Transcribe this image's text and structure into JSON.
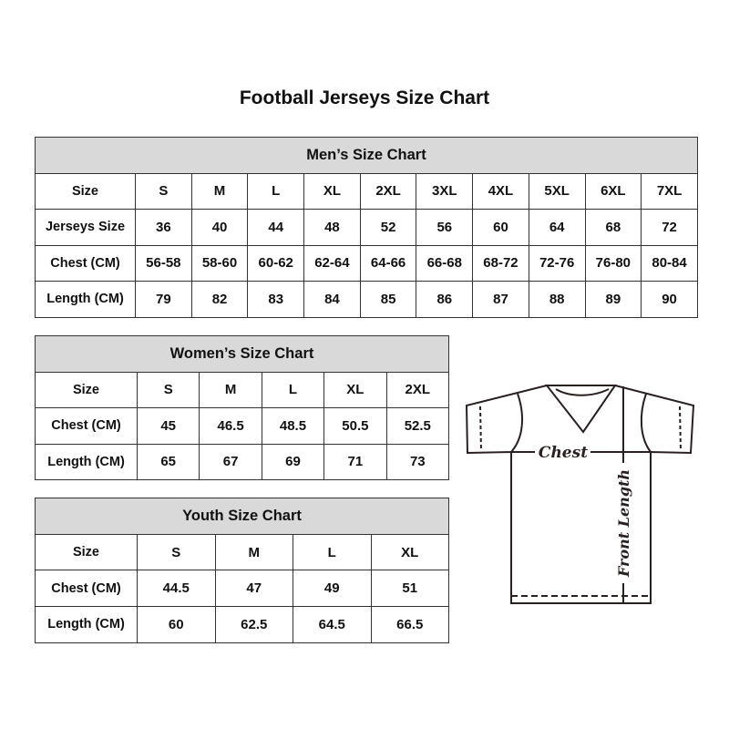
{
  "title": "Football Jerseys Size Chart",
  "tables": {
    "men": {
      "caption": "Men’s Size Chart",
      "rows": [
        [
          "Size",
          "S",
          "M",
          "L",
          "XL",
          "2XL",
          "3XL",
          "4XL",
          "5XL",
          "6XL",
          "7XL"
        ],
        [
          "Jerseys Size",
          "36",
          "40",
          "44",
          "48",
          "52",
          "56",
          "60",
          "64",
          "68",
          "72"
        ],
        [
          "Chest (CM)",
          "56-58",
          "58-60",
          "60-62",
          "62-64",
          "64-66",
          "66-68",
          "68-72",
          "72-76",
          "76-80",
          "80-84"
        ],
        [
          "Length (CM)",
          "79",
          "82",
          "83",
          "84",
          "85",
          "86",
          "87",
          "88",
          "89",
          "90"
        ]
      ]
    },
    "women": {
      "caption": "Women’s Size Chart",
      "rows": [
        [
          "Size",
          "S",
          "M",
          "L",
          "XL",
          "2XL"
        ],
        [
          "Chest (CM)",
          "45",
          "46.5",
          "48.5",
          "50.5",
          "52.5"
        ],
        [
          "Length (CM)",
          "65",
          "67",
          "69",
          "71",
          "73"
        ]
      ]
    },
    "youth": {
      "caption": "Youth Size Chart",
      "rows": [
        [
          "Size",
          "S",
          "M",
          "L",
          "XL"
        ],
        [
          "Chest (CM)",
          "44.5",
          "47",
          "49",
          "51"
        ],
        [
          "Length (CM)",
          "60",
          "62.5",
          "64.5",
          "66.5"
        ]
      ]
    }
  },
  "diagram": {
    "chest_label": "Chest",
    "length_label": "Front Length"
  }
}
